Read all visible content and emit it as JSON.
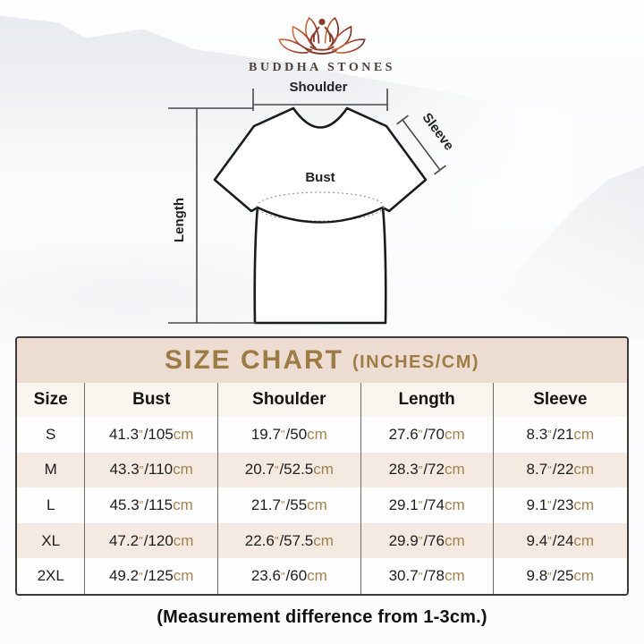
{
  "brand": {
    "name": "BUDDHA STONES"
  },
  "diagram": {
    "labels": {
      "shoulder": "Shoulder",
      "sleeve": "Sleeve",
      "bust": "Bust",
      "length": "Length"
    }
  },
  "size_chart": {
    "title": "SIZE CHART",
    "title_suffix": "(INCHES/CM)",
    "columns": [
      "Size",
      "Bust",
      "Shoulder",
      "Length",
      "Sleeve"
    ],
    "unit_inch_mark": "\"",
    "unit_cm": "cm",
    "rows": [
      {
        "size": "S",
        "bust": {
          "in": "41.3",
          "cm": "105"
        },
        "shoulder": {
          "in": "19.7",
          "cm": "50"
        },
        "length": {
          "in": "27.6",
          "cm": "70"
        },
        "sleeve": {
          "in": "8.3",
          "cm": "21"
        }
      },
      {
        "size": "M",
        "bust": {
          "in": "43.3",
          "cm": "110"
        },
        "shoulder": {
          "in": "20.7",
          "cm": "52.5"
        },
        "length": {
          "in": "28.3",
          "cm": "72"
        },
        "sleeve": {
          "in": "8.7",
          "cm": "22"
        }
      },
      {
        "size": "L",
        "bust": {
          "in": "45.3",
          "cm": "115"
        },
        "shoulder": {
          "in": "21.7",
          "cm": "55"
        },
        "length": {
          "in": "29.1",
          "cm": "74"
        },
        "sleeve": {
          "in": "9.1",
          "cm": "23"
        }
      },
      {
        "size": "XL",
        "bust": {
          "in": "47.2",
          "cm": "120"
        },
        "shoulder": {
          "in": "22.6",
          "cm": "57.5"
        },
        "length": {
          "in": "29.9",
          "cm": "76"
        },
        "sleeve": {
          "in": "9.4",
          "cm": "24"
        }
      },
      {
        "size": "2XL",
        "bust": {
          "in": "49.2",
          "cm": "125"
        },
        "shoulder": {
          "in": "23.6",
          "cm": "60"
        },
        "length": {
          "in": "30.7",
          "cm": "78"
        },
        "sleeve": {
          "in": "9.8",
          "cm": "25"
        }
      }
    ]
  },
  "footer": {
    "note": "(Measurement difference from 1-3cm.)"
  },
  "colors": {
    "accent_gold": "#9d7b45",
    "title_bar_bg": "#eddcd2",
    "header_row_bg": "#fbf5ef",
    "row_alt_bg": "#f4eae1",
    "unit_tan": "#a5814f",
    "logo_maroon": "#8a3c2c",
    "table_border": "#3d3933"
  }
}
